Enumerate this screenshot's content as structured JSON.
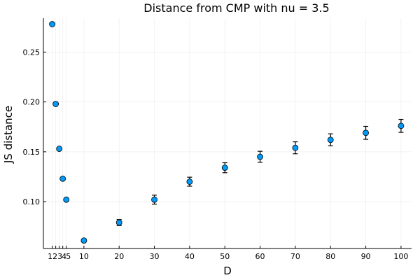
{
  "chart_data": {
    "type": "scatter",
    "title": "Distance from CMP with nu = 3.5",
    "xlabel": "D",
    "ylabel": "JS distance",
    "xlim": [
      -1.5,
      103
    ],
    "ylim": [
      0.053,
      0.284
    ],
    "xticks": [
      1,
      2,
      3,
      4,
      5,
      10,
      20,
      30,
      40,
      50,
      60,
      70,
      80,
      90,
      100
    ],
    "xtick_labels": [
      "1",
      "2",
      "3",
      "4",
      "5",
      "10",
      "20",
      "30",
      "40",
      "50",
      "60",
      "70",
      "80",
      "90",
      "100"
    ],
    "yticks": [
      0.1,
      0.15,
      0.2,
      0.25
    ],
    "ytick_labels": [
      "0.10",
      "0.15",
      "0.20",
      "0.25"
    ],
    "grid": true,
    "legend": false,
    "marker_color": "#009AFA",
    "points": [
      {
        "x": 1,
        "y": 0.278,
        "err": 0
      },
      {
        "x": 2,
        "y": 0.198,
        "err": 0
      },
      {
        "x": 3,
        "y": 0.153,
        "err": 0
      },
      {
        "x": 4,
        "y": 0.123,
        "err": 0
      },
      {
        "x": 5,
        "y": 0.102,
        "err": 0
      },
      {
        "x": 10,
        "y": 0.061,
        "err": 0
      },
      {
        "x": 20,
        "y": 0.079,
        "err": 0.003
      },
      {
        "x": 30,
        "y": 0.102,
        "err": 0.0045
      },
      {
        "x": 40,
        "y": 0.12,
        "err": 0.0045
      },
      {
        "x": 50,
        "y": 0.134,
        "err": 0.005
      },
      {
        "x": 60,
        "y": 0.145,
        "err": 0.0055
      },
      {
        "x": 70,
        "y": 0.154,
        "err": 0.006
      },
      {
        "x": 80,
        "y": 0.162,
        "err": 0.006
      },
      {
        "x": 90,
        "y": 0.169,
        "err": 0.0065
      },
      {
        "x": 100,
        "y": 0.176,
        "err": 0.0065
      }
    ]
  }
}
